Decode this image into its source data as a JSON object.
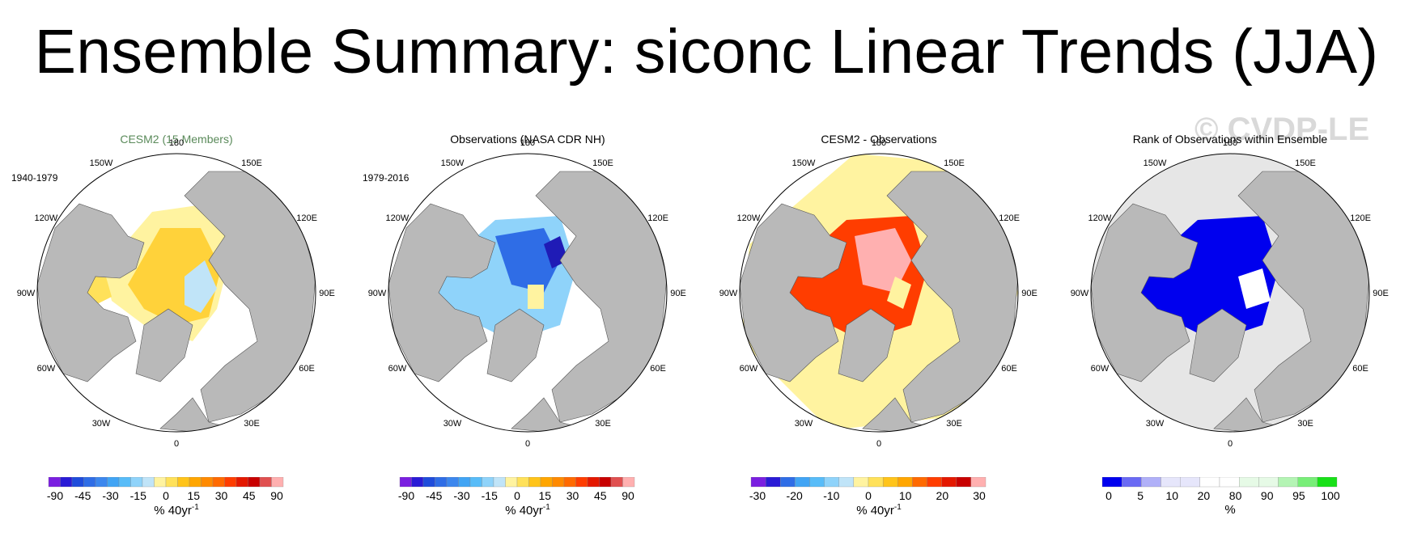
{
  "title": "Ensemble Summary: siconc Linear Trends (JJA)",
  "watermark": "© CVDP-LE",
  "lon_labels": {
    "n": "180",
    "ne1": "150E",
    "e1": "120E",
    "e": "90E",
    "se1": "60E",
    "se2": "30E",
    "s": "0",
    "sw2": "30W",
    "sw1": "60W",
    "w": "90W",
    "w1": "120W",
    "nw1": "150W"
  },
  "colors": {
    "land": "#b9b9b9",
    "ocean": "#ffffff",
    "grey_bg": "#e6e6e6"
  },
  "panels": [
    {
      "id": "cesm2",
      "title": "CESM2 (15 Members)",
      "title_color": "#5a8a5a",
      "period": "1940-1979",
      "fill": "yellow_orange",
      "colorbar": {
        "colors": [
          "#7a1fe0",
          "#2a1bd6",
          "#1f4cdb",
          "#2f6de6",
          "#3c87ee",
          "#41a4f4",
          "#58bcf8",
          "#8fd3fa",
          "#c0e4f8",
          "#fff3a0",
          "#ffe15a",
          "#ffc41a",
          "#ffa600",
          "#ff8a00",
          "#ff6a00",
          "#ff3d00",
          "#e41800",
          "#c80000",
          "#e05050",
          "#ffb0b0"
        ],
        "labels": [
          "-90",
          "-45",
          "-30",
          "-15",
          "0",
          "15",
          "30",
          "45",
          "90"
        ],
        "units": "% 40yr"
      }
    },
    {
      "id": "obs",
      "title": "Observations (NASA CDR NH)",
      "title_color": "#000000",
      "period": "1979-2016",
      "fill": "blue",
      "colorbar": {
        "colors": [
          "#7a1fe0",
          "#2a1bd6",
          "#1f4cdb",
          "#2f6de6",
          "#3c87ee",
          "#41a4f4",
          "#58bcf8",
          "#8fd3fa",
          "#c0e4f8",
          "#fff3a0",
          "#ffe15a",
          "#ffc41a",
          "#ffa600",
          "#ff8a00",
          "#ff6a00",
          "#ff3d00",
          "#e41800",
          "#c80000",
          "#e05050",
          "#ffb0b0"
        ],
        "labels": [
          "-90",
          "-45",
          "-30",
          "-15",
          "0",
          "15",
          "30",
          "45",
          "90"
        ],
        "units": "% 40yr"
      }
    },
    {
      "id": "diff",
      "title": "CESM2 - Observations",
      "title_color": "#000000",
      "period": "",
      "fill": "red",
      "colorbar": {
        "colors": [
          "#7a1fe0",
          "#2a1bd6",
          "#2f6de6",
          "#41a4f4",
          "#58bcf8",
          "#8fd3fa",
          "#c0e4f8",
          "#fff3a0",
          "#ffe15a",
          "#ffc41a",
          "#ffa600",
          "#ff6a00",
          "#ff3d00",
          "#e41800",
          "#c80000",
          "#ffb0b0"
        ],
        "labels": [
          "-30",
          "-20",
          "-10",
          "0",
          "10",
          "20",
          "30"
        ],
        "units": "% 40yr"
      }
    },
    {
      "id": "rank",
      "title": "Rank of Observations within Ensemble",
      "title_color": "#000000",
      "period": "",
      "fill": "rank",
      "colorbar": {
        "colors": [
          "#0000ee",
          "#6a6af4",
          "#b0b0f8",
          "#e6e6fb",
          "#e6e6fb",
          "#ffffff",
          "#ffffff",
          "#e6fae6",
          "#e6fae6",
          "#b4f4b4",
          "#78ee78",
          "#18e018"
        ],
        "labels": [
          "0",
          "5",
          "10",
          "20",
          "80",
          "90",
          "95",
          "100"
        ],
        "units": "%"
      }
    }
  ]
}
